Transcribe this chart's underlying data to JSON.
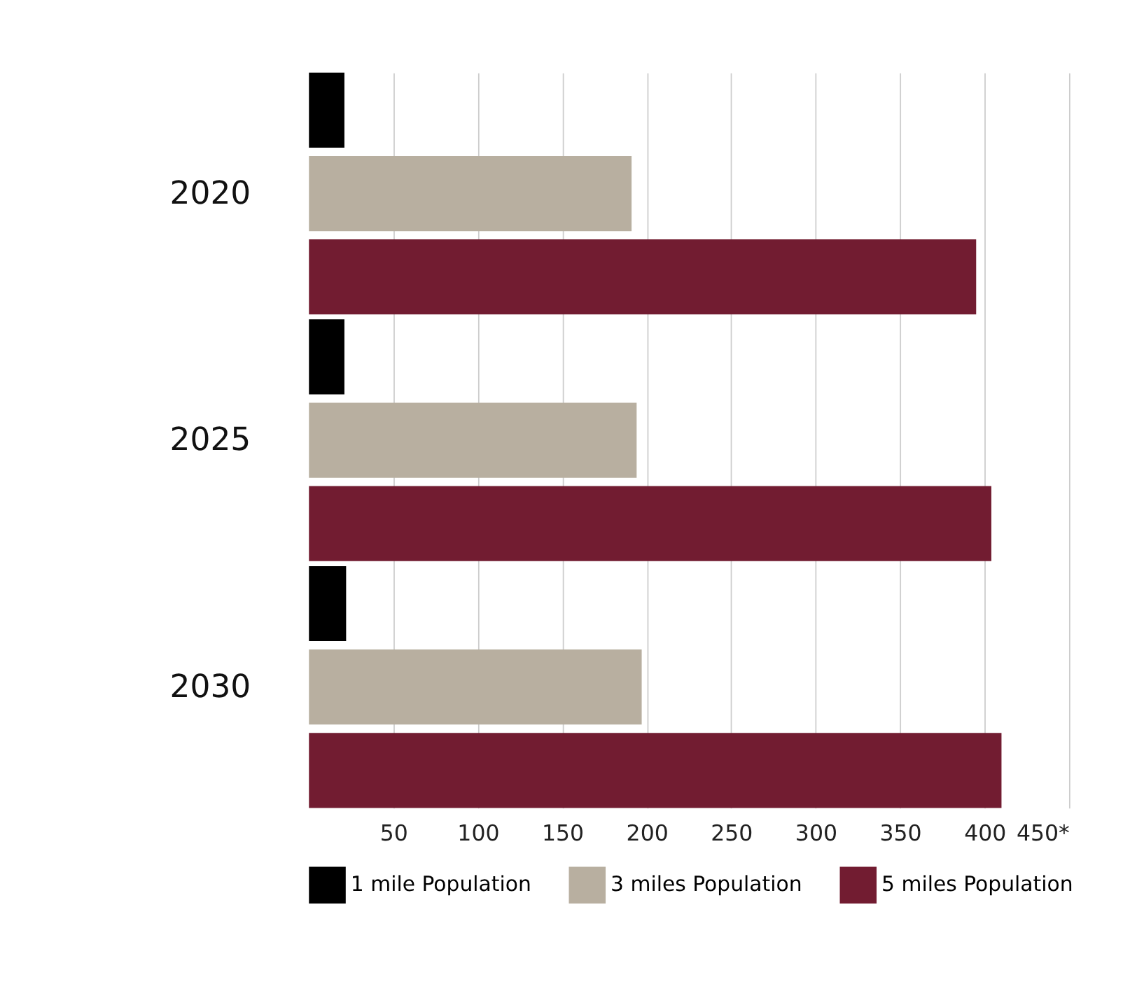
{
  "chart_data": {
    "type": "bar",
    "orientation": "horizontal",
    "categories": [
      "2020",
      "2025",
      "2030"
    ],
    "series": [
      {
        "name": "1 mile Population",
        "color": "#000000",
        "values": [
          21,
          21,
          22
        ]
      },
      {
        "name": "3 miles Population",
        "color": "#b8afa0",
        "values": [
          191,
          194,
          197
        ]
      },
      {
        "name": "5 miles Population",
        "color": "#721c31",
        "values": [
          395,
          404,
          410
        ]
      }
    ],
    "xlim": [
      0,
      450
    ],
    "xticks": [
      50,
      100,
      150,
      200,
      250,
      300,
      350,
      400,
      {
        "value": 450,
        "label": "450*"
      }
    ],
    "grid": "x",
    "legend": "bottom"
  }
}
